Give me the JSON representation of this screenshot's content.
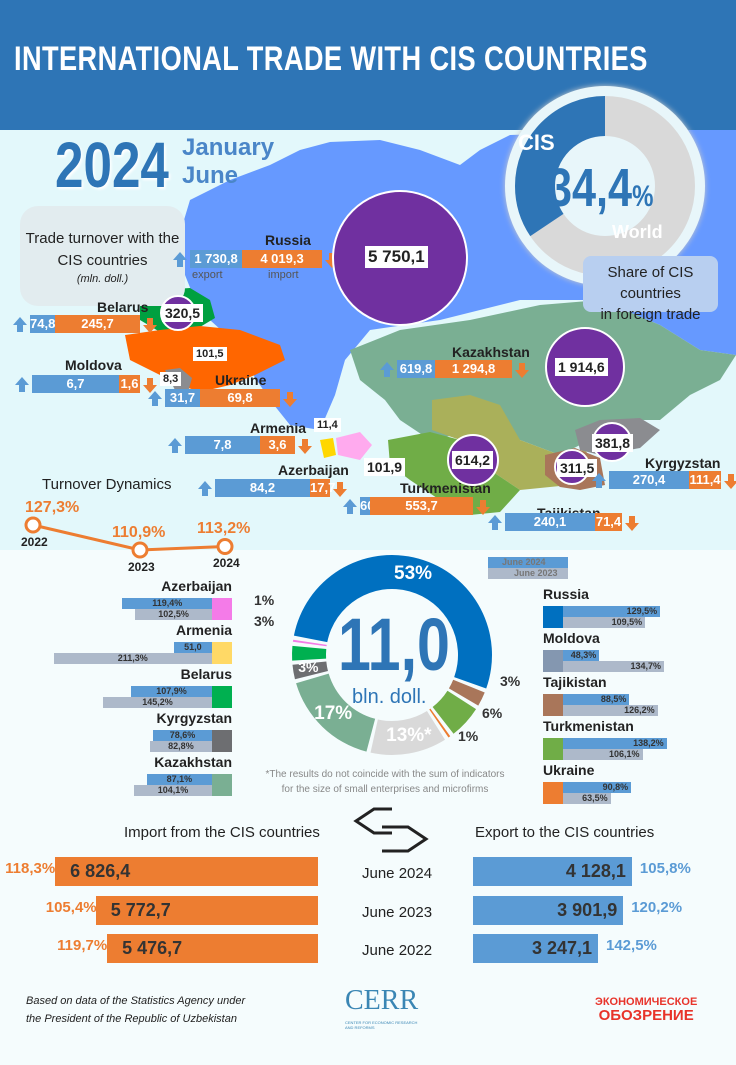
{
  "header": {
    "title": "INTERNATIONAL TRADE WITH CIS COUNTRIES"
  },
  "period": {
    "year": "2024",
    "month_start": "January",
    "month_end": "June"
  },
  "cis_share": {
    "label_cis": "CIS",
    "label_world": "World",
    "value": "34,4",
    "unit": "%",
    "caption_line1": "Share of CIS countries",
    "caption_line2": "in foreign trade",
    "share_percent": 34.4
  },
  "turnover_box": {
    "line1": "Trade turnover with the",
    "line2": "CIS countries",
    "unit": "(mln. doll.)"
  },
  "map": {
    "export_label": "export",
    "import_label": "import",
    "countries": [
      {
        "name": "Russia",
        "export": "1 730,8",
        "import": "4 019,3",
        "turnover": "5 750,1"
      },
      {
        "name": "Belarus",
        "export": "74,8",
        "import": "245,7",
        "turnover": "320,5"
      },
      {
        "name": "Moldova",
        "export": "6,7",
        "import": "1,6",
        "turnover": "8,3"
      },
      {
        "name": "Ukraine",
        "export": "31,7",
        "import": "69,8",
        "turnover": "101,5"
      },
      {
        "name": "Armenia",
        "export": "7,8",
        "import": "3,6",
        "turnover": "11,4"
      },
      {
        "name": "Azerbaijan",
        "export": "84,2",
        "import": "17,7",
        "turnover": "101,9"
      },
      {
        "name": "Kazakhstan",
        "export": "619,8",
        "import": "1 294,8",
        "turnover": "1 914,6"
      },
      {
        "name": "Turkmenistan",
        "export": "60,5",
        "import": "553,7",
        "turnover": "614,2"
      },
      {
        "name": "Tajikistan",
        "export": "240,1",
        "import": "71,4",
        "turnover": "311,5"
      },
      {
        "name": "Kyrgyzstan",
        "export": "270,4",
        "import": "111,4",
        "turnover": "381,8"
      }
    ]
  },
  "colors": {
    "header": "#2e75b6",
    "export": "#5b9bd5",
    "import": "#ed7d31",
    "turnover_circle": "#7030a0",
    "russia_map": "#6699ff"
  },
  "chart_data": [
    {
      "type": "line",
      "title": "Turnover Dynamics",
      "categories": [
        "2022",
        "2023",
        "2024"
      ],
      "values": [
        127.3,
        110.9,
        113.2
      ],
      "labels": [
        "127,3%",
        "110,9%",
        "113,2%"
      ],
      "color": "#ed7d31"
    },
    {
      "type": "pie",
      "center_value": "11,0",
      "center_unit": "bln. doll.",
      "slices": [
        {
          "country": "Russia",
          "value": 53,
          "label": "53%",
          "color": "#0070c0"
        },
        {
          "country": "Tajikistan",
          "value": 3,
          "label": "3%",
          "color": "#a9765a"
        },
        {
          "country": "Turkmenistan",
          "value": 6,
          "label": "6%",
          "color": "#70ad47"
        },
        {
          "country": "Ukraine",
          "value": 1,
          "label": "1%",
          "color": "#ed7d31"
        },
        {
          "country": "",
          "value": 13,
          "label": "13%*",
          "color": "#d9d9d9"
        },
        {
          "country": "Kazakhstan",
          "value": 17,
          "label": "17%",
          "color": "#7aaf93"
        },
        {
          "country": "Kyrgyzstan",
          "value": 3,
          "label": "3%",
          "color": "#6d6e71"
        },
        {
          "country": "Belarus",
          "value": 3,
          "label": "3%",
          "color": "#00b050"
        },
        {
          "country": "Azerbaijan",
          "value": 1,
          "label": "1%",
          "color": "#f47be8"
        }
      ],
      "footnote_line1": "*The results do not coincide with the sum of indicators",
      "footnote_line2": "for the size of small enterprises and microfirms"
    },
    {
      "type": "bar",
      "legend": [
        "June 2024",
        "June 2023"
      ],
      "legend_colors": [
        "#5b9bd5",
        "#adb9ca"
      ],
      "left": [
        {
          "country": "Azerbaijan",
          "v2024": 119.4,
          "l2024": "119,4%",
          "v2023": 102.5,
          "l2023": "102,5%",
          "color": "#f47be8"
        },
        {
          "country": "Armenia",
          "v2024": 51.0,
          "l2024": "51,0",
          "v2023": 211.3,
          "l2023": "211,3%",
          "color": "#ffd966"
        },
        {
          "country": "Belarus",
          "v2024": 107.9,
          "l2024": "107,9%",
          "v2023": 145.2,
          "l2023": "145,2%",
          "color": "#00b050"
        },
        {
          "country": "Kyrgyzstan",
          "v2024": 78.6,
          "l2024": "78,6%",
          "v2023": 82.8,
          "l2023": "82,8%",
          "color": "#6d6e71"
        },
        {
          "country": "Kazakhstan",
          "v2024": 87.1,
          "l2024": "87,1%",
          "v2023": 104.1,
          "l2023": "104,1%",
          "color": "#7aaf93"
        }
      ],
      "right": [
        {
          "country": "Russia",
          "v2024": 129.5,
          "l2024": "129,5%",
          "v2023": 109.5,
          "l2023": "109,5%",
          "color": "#0070c0"
        },
        {
          "country": "Moldova",
          "v2024": 48.3,
          "l2024": "48,3%",
          "v2023": 134.7,
          "l2023": "134,7%",
          "color": "#8497b0"
        },
        {
          "country": "Tajikistan",
          "v2024": 88.5,
          "l2024": "88,5%",
          "v2023": 126.2,
          "l2023": "126,2%",
          "color": "#a9765a"
        },
        {
          "country": "Turkmenistan",
          "v2024": 138.2,
          "l2024": "138,2%",
          "v2023": 106.1,
          "l2023": "106,1%",
          "color": "#70ad47"
        },
        {
          "country": "Ukraine",
          "v2024": 90.8,
          "l2024": "90,8%",
          "v2023": 63.5,
          "l2023": "63,5%",
          "color": "#ed7d31"
        }
      ]
    },
    {
      "type": "bar",
      "import_title": "Import from the CIS countries",
      "export_title": "Export to the CIS countries",
      "categories": [
        "June 2024",
        "June 2023",
        "June 2022"
      ],
      "import": [
        6826.4,
        5772.7,
        5476.7
      ],
      "import_labels": [
        "6 826,4",
        "5 772,7",
        "5 476,7"
      ],
      "import_growth": [
        "118,3%",
        "105,4%",
        "119,7%"
      ],
      "export": [
        4128.1,
        3901.9,
        3247.1
      ],
      "export_labels": [
        "4 128,1",
        "3 901,9",
        "3 247,1"
      ],
      "export_growth": [
        "105,8%",
        "120,2%",
        "142,5%"
      ]
    }
  ],
  "footer": {
    "source_line1": "Based on data of the Statistics Agency under",
    "source_line2": "the President of the Republic of Uzbekistan",
    "logo1": "CERR",
    "logo1_sub": "CENTER FOR ECONOMIC RESEARCH AND REFORMS",
    "logo2_line1": "ЭКОНОМИЧЕСКОЕ",
    "logo2_line2": "ОБОЗРЕНИЕ"
  }
}
